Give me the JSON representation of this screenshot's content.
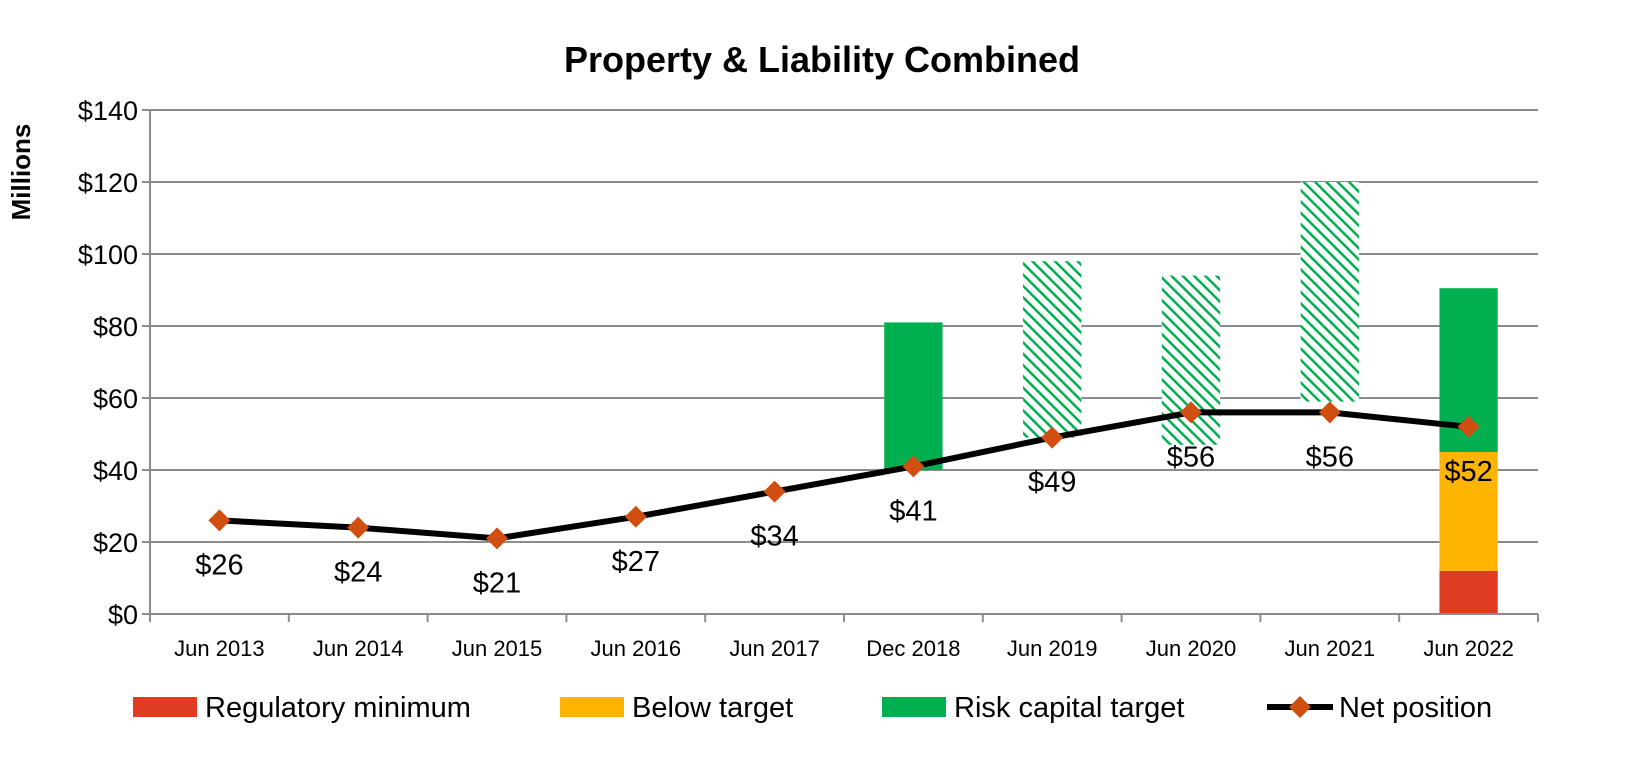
{
  "chart_data": {
    "type": "bar",
    "title": "Property & Liability Combined",
    "ylabel": "Millions",
    "xlabel": "",
    "ylim": [
      0,
      140
    ],
    "yticks": [
      0,
      20,
      40,
      60,
      80,
      100,
      120,
      140
    ],
    "ytick_labels": [
      "$0",
      "$20",
      "$40",
      "$60",
      "$80",
      "$100",
      "$120",
      "$140"
    ],
    "grid": true,
    "legend_position": "bottom",
    "categories": [
      "Jun 2013",
      "Jun 2014",
      "Jun 2015",
      "Jun 2016",
      "Jun 2017",
      "Dec 2018",
      "Jun 2019",
      "Jun 2020",
      "Jun 2021",
      "Jun 2022"
    ],
    "series": [
      {
        "name": "Regulatory minimum",
        "kind": "stacked-bar",
        "color": "#E03C24",
        "ranges": [
          null,
          null,
          null,
          null,
          null,
          null,
          null,
          null,
          null,
          [
            0,
            12
          ]
        ]
      },
      {
        "name": "Below target",
        "kind": "stacked-bar",
        "color": "#FFB400",
        "ranges": [
          null,
          null,
          null,
          null,
          null,
          null,
          null,
          null,
          null,
          [
            12,
            45
          ]
        ]
      },
      {
        "name": "Risk capital target",
        "kind": "stacked-bar",
        "color": "#00B050",
        "ranges": [
          null,
          null,
          null,
          null,
          null,
          [
            40,
            81
          ],
          [
            49,
            98
          ],
          [
            47,
            94
          ],
          [
            59,
            120
          ],
          [
            45,
            90.5
          ]
        ],
        "hatched": [
          false,
          false,
          false,
          false,
          false,
          false,
          true,
          true,
          true,
          false
        ]
      },
      {
        "name": "Net position",
        "kind": "line",
        "color": "#000000",
        "marker_color": "#D04F10",
        "values": [
          26,
          24,
          21,
          27,
          34,
          41,
          49,
          56,
          56,
          52
        ],
        "labels": [
          "$26",
          "$24",
          "$21",
          "$27",
          "$34",
          "$41",
          "$49",
          "$56",
          "$56",
          "$52"
        ]
      }
    ]
  }
}
